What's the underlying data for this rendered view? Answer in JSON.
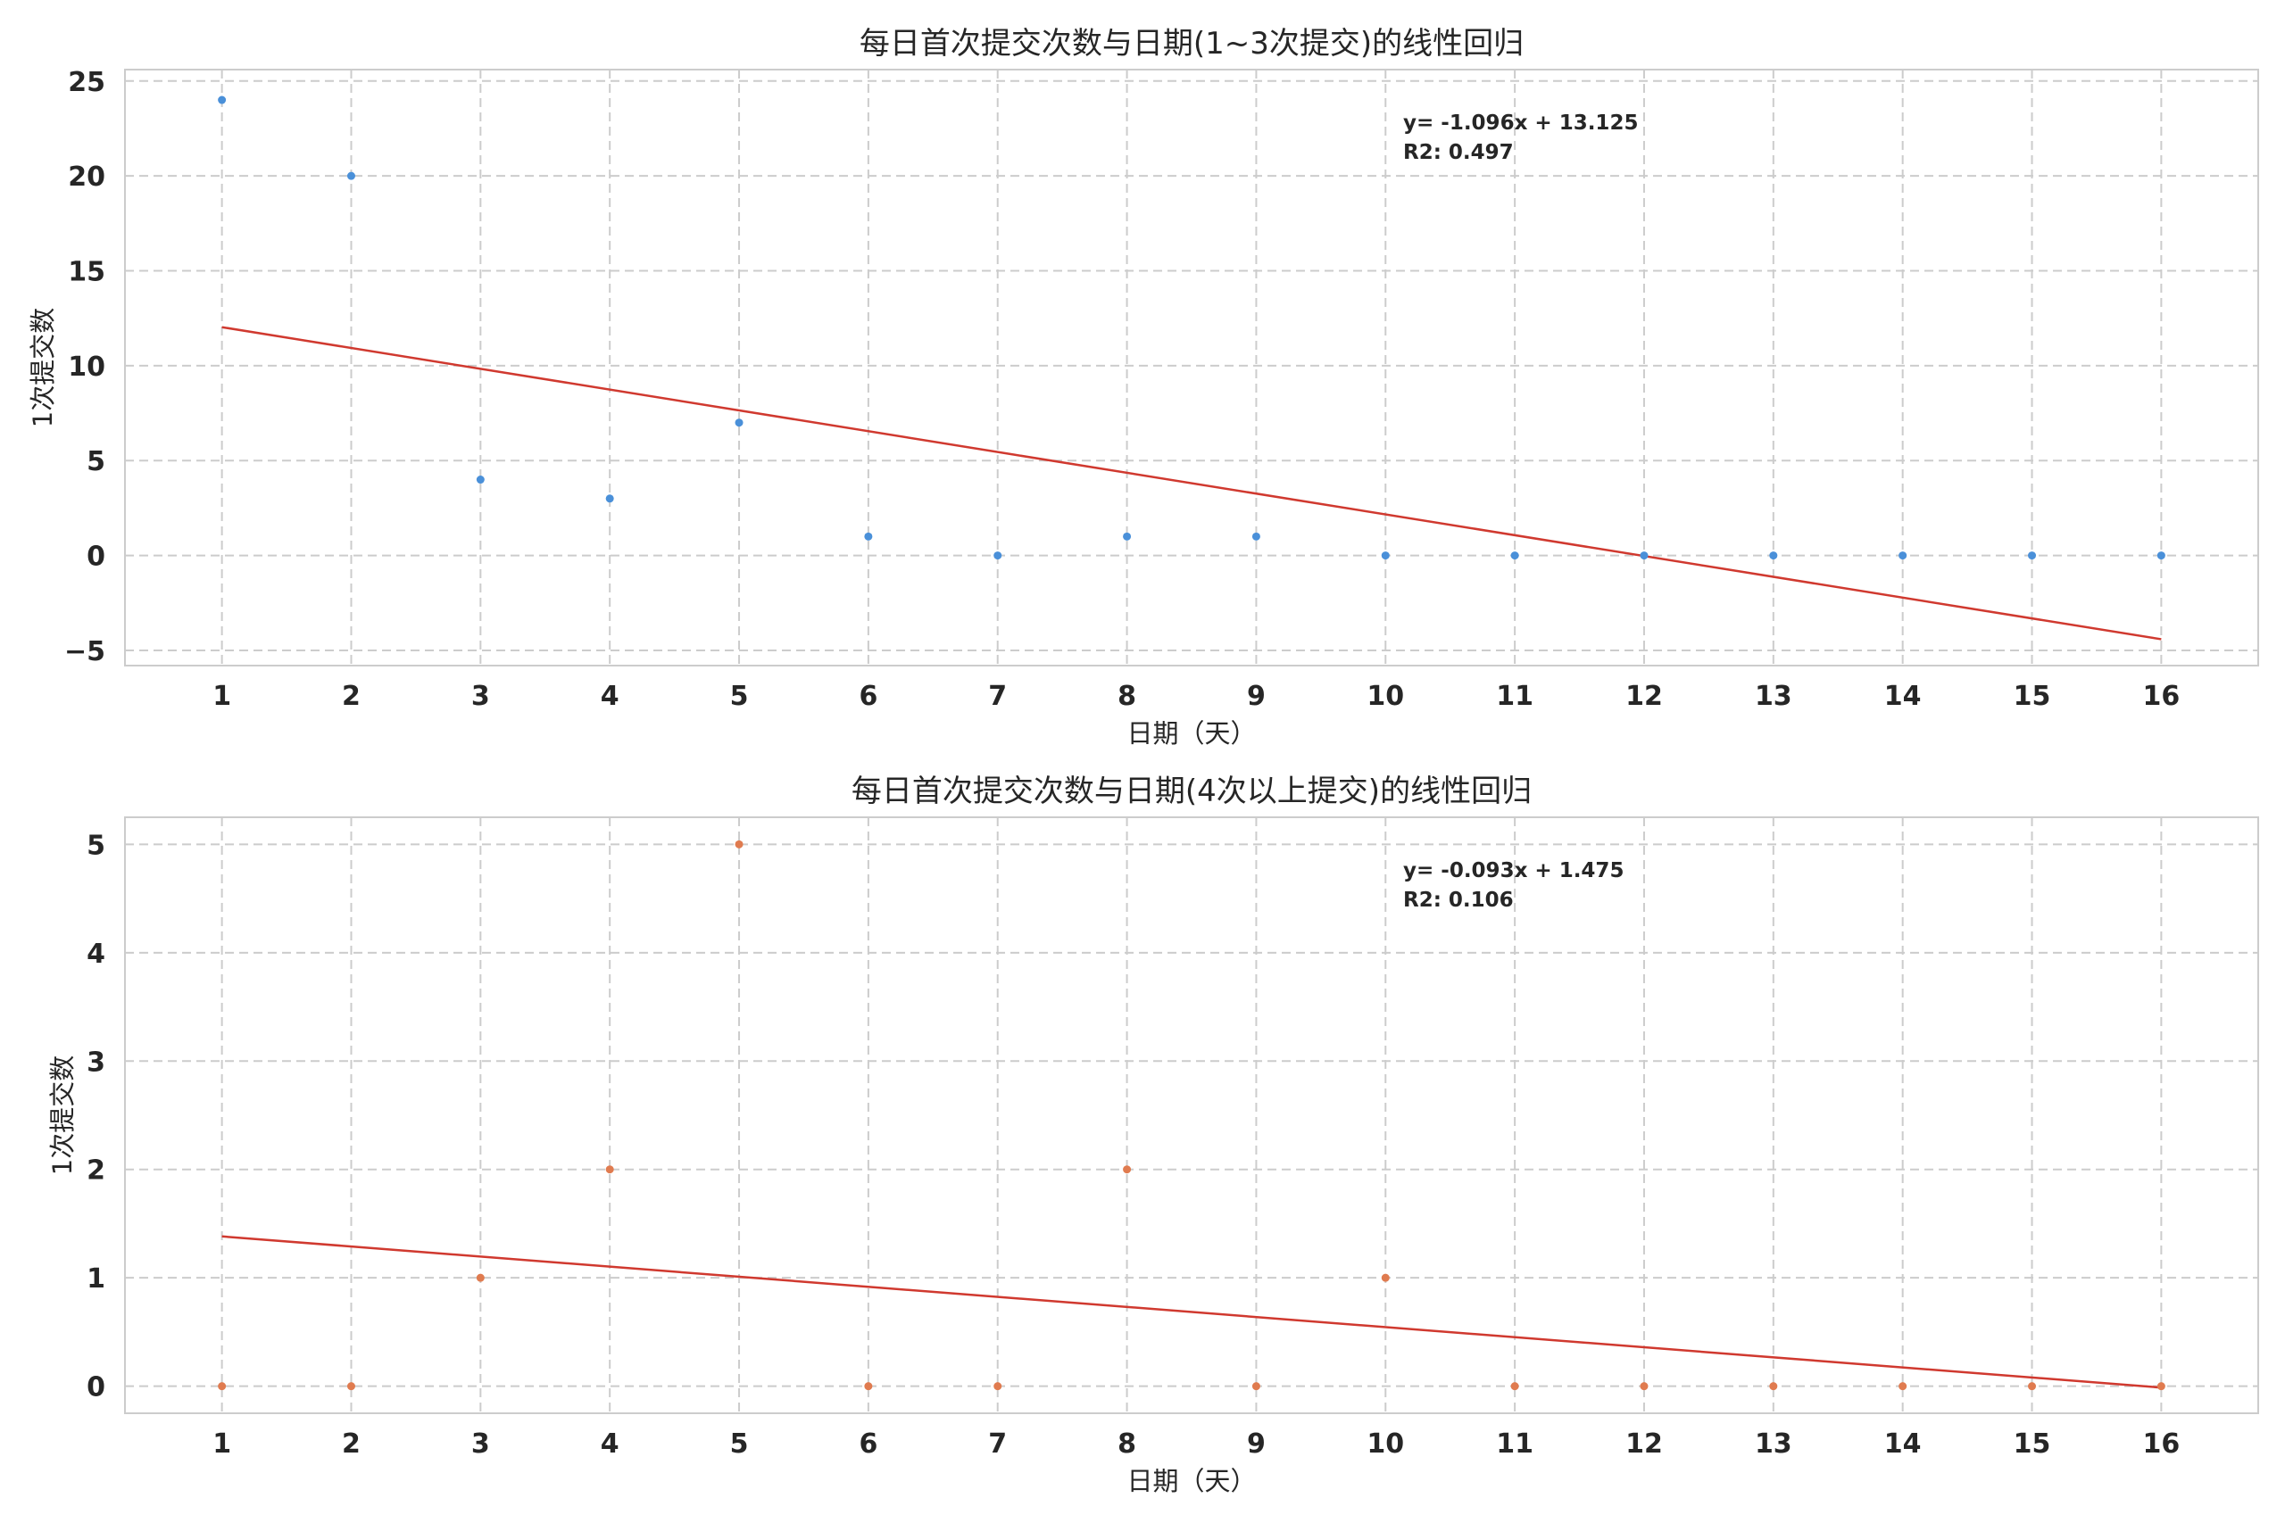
{
  "chart_data": [
    {
      "type": "scatter",
      "title": "每日首次提交次数与日期(1~3次提交)的线性回归",
      "xlabel": "日期（天）",
      "ylabel": "1次提交数",
      "x": [
        1,
        2,
        3,
        4,
        5,
        6,
        7,
        8,
        9,
        10,
        11,
        12,
        13,
        14,
        15,
        16
      ],
      "y": [
        24,
        20,
        4,
        3,
        7,
        1,
        0,
        1,
        1,
        0,
        0,
        0,
        0,
        0,
        0,
        0
      ],
      "x_ticks": [
        "1",
        "2",
        "3",
        "4",
        "5",
        "6",
        "7",
        "8",
        "9",
        "10",
        "11",
        "12",
        "13",
        "14",
        "15",
        "16"
      ],
      "y_ticks": [
        "−5",
        "0",
        "5",
        "10",
        "15",
        "20",
        "25"
      ],
      "y_tick_values": [
        -5,
        0,
        5,
        10,
        15,
        20,
        25
      ],
      "xlim": [
        0.25,
        16.75
      ],
      "ylim": [
        -5.8,
        25.6
      ],
      "grid": true,
      "point_color": "#4a90d9",
      "regression": {
        "slope": -1.096,
        "intercept": 13.125,
        "color": "#d0392f",
        "equation_text": "y= -1.096x + 13.125",
        "r2_text": "R2: 0.497"
      }
    },
    {
      "type": "scatter",
      "title": "每日首次提交次数与日期(4次以上提交)的线性回归",
      "xlabel": "日期（天）",
      "ylabel": "1次提交数",
      "x": [
        1,
        2,
        3,
        4,
        5,
        6,
        7,
        8,
        9,
        10,
        11,
        12,
        13,
        14,
        15,
        16
      ],
      "y": [
        0,
        0,
        1,
        2,
        5,
        0,
        0,
        2,
        0,
        1,
        0,
        0,
        0,
        0,
        0,
        0
      ],
      "x_ticks": [
        "1",
        "2",
        "3",
        "4",
        "5",
        "6",
        "7",
        "8",
        "9",
        "10",
        "11",
        "12",
        "13",
        "14",
        "15",
        "16"
      ],
      "y_ticks": [
        "0",
        "1",
        "2",
        "3",
        "4",
        "5"
      ],
      "y_tick_values": [
        0,
        1,
        2,
        3,
        4,
        5
      ],
      "xlim": [
        0.25,
        16.75
      ],
      "ylim": [
        -0.25,
        5.25
      ],
      "grid": true,
      "point_color": "#e07b4f",
      "regression": {
        "slope": -0.093,
        "intercept": 1.475,
        "color": "#d0392f",
        "equation_text": "y= -0.093x + 1.475",
        "r2_text": "R2: 0.106"
      }
    }
  ]
}
